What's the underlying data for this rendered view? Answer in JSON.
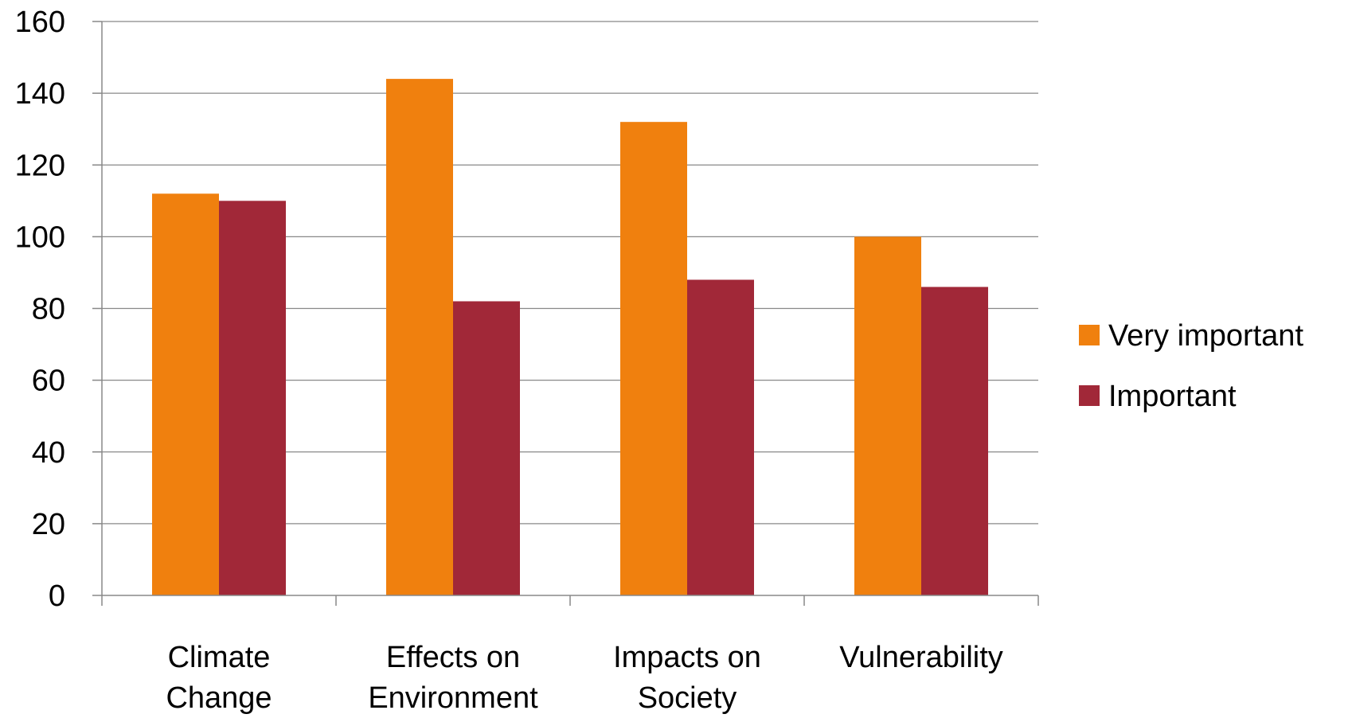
{
  "chart_data": {
    "type": "bar",
    "categories": [
      [
        "Climate",
        "Change"
      ],
      [
        "Effects on",
        "Environment"
      ],
      [
        "Impacts on",
        "Society"
      ],
      [
        "Vulnerability"
      ]
    ],
    "series": [
      {
        "name": "Very important",
        "color": "#F0800E",
        "values": [
          112,
          144,
          132,
          100
        ]
      },
      {
        "name": "Important",
        "color": "#A12838",
        "values": [
          110,
          82,
          88,
          86
        ]
      }
    ],
    "ylim": [
      0,
      160
    ],
    "yticks": [
      "0",
      "20",
      "40",
      "60",
      "80",
      "100",
      "120",
      "140",
      "160"
    ],
    "grid": true,
    "legend": "right",
    "title": "",
    "xlabel": "",
    "ylabel": ""
  }
}
